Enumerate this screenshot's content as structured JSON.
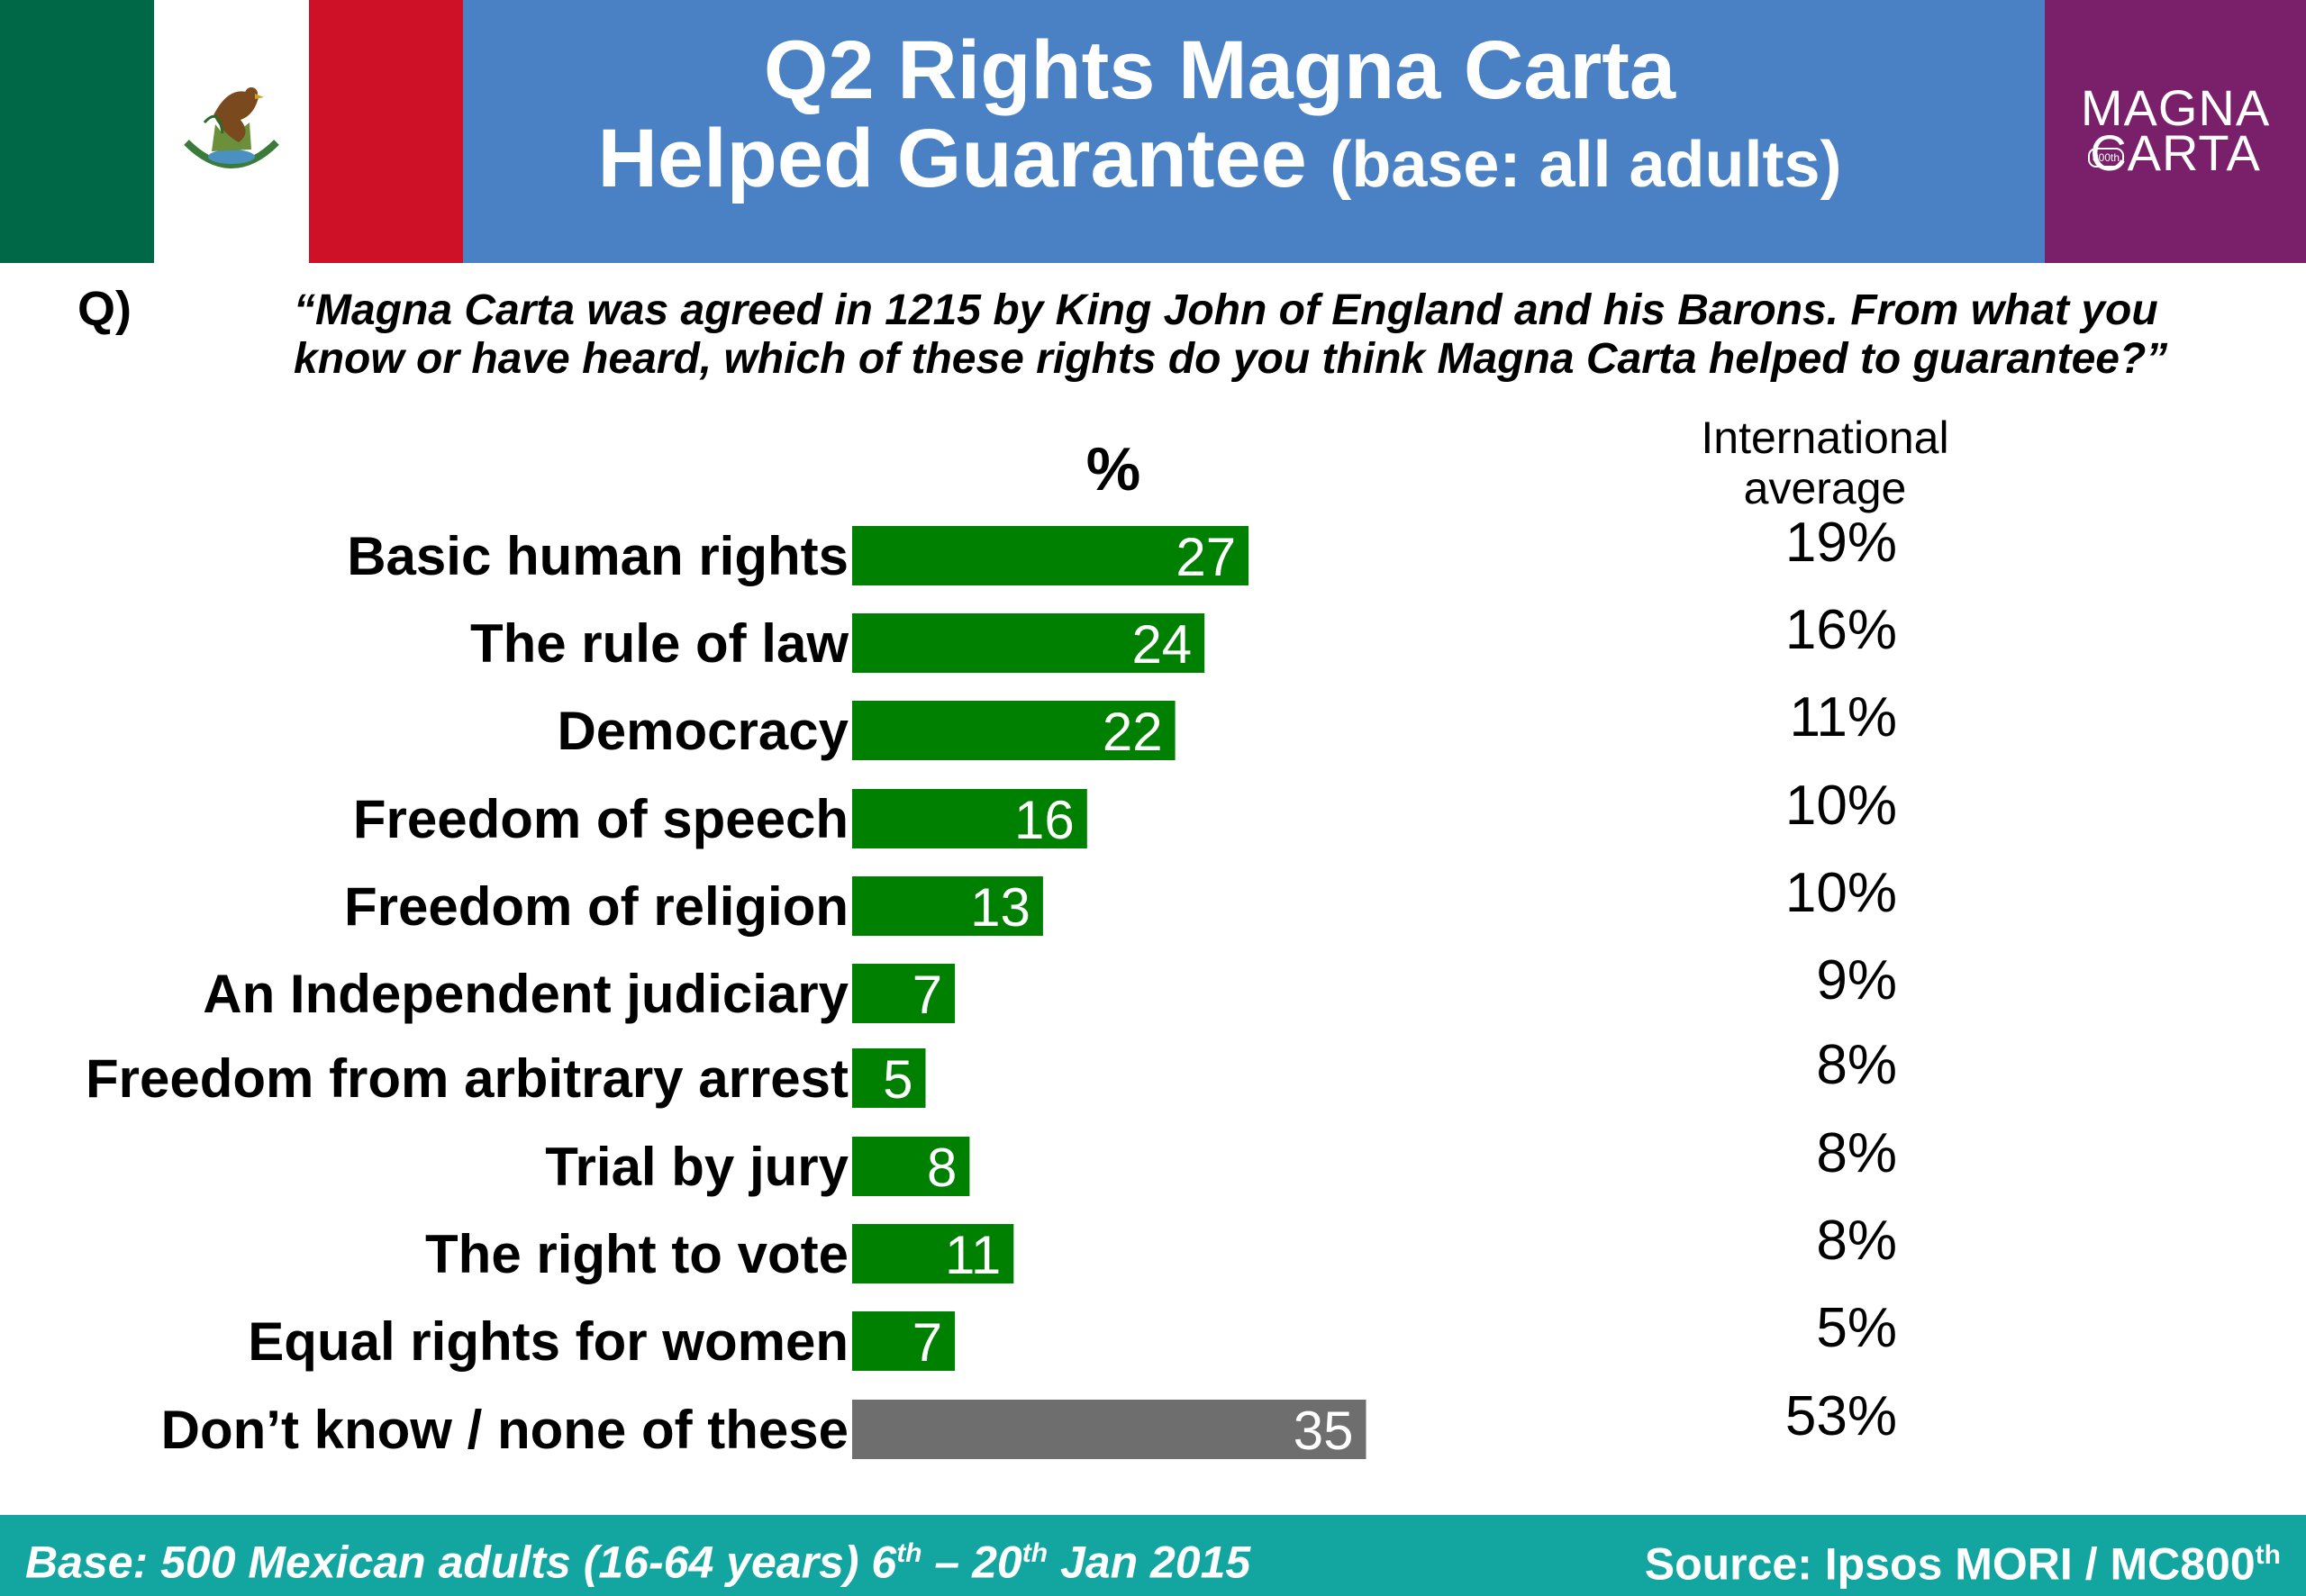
{
  "header": {
    "title_line1": "Q2 Rights Magna Carta",
    "title_line2_main": "Helped Guarantee",
    "title_line2_small": "(base: all adults)",
    "logo_line1": "MAGNA",
    "logo_line2": "CARTA",
    "logo_badge": "800th"
  },
  "question": {
    "label": "Q)",
    "text": "“Magna Carta was agreed in 1215 by King John of England and his Barons. From what you know or have heard, which of these rights do you think Magna Carta helped to guarantee?”"
  },
  "columns": {
    "pct_header": "%",
    "intl_header_line1": "International",
    "intl_header_line2": "average"
  },
  "chart_data": {
    "type": "bar",
    "orientation": "horizontal",
    "categories": [
      "Basic human rights",
      "The rule of law",
      "Democracy",
      "Freedom of speech",
      "Freedom of religion",
      "An Independent judiciary",
      "Freedom from arbitrary arrest",
      "Trial by jury",
      "The right to vote",
      "Equal rights for women",
      "Don’t know / none of these"
    ],
    "values": [
      27,
      24,
      22,
      16,
      13,
      7,
      5,
      8,
      11,
      7,
      35
    ],
    "bar_colors": [
      "#008000",
      "#008000",
      "#008000",
      "#008000",
      "#008000",
      "#008000",
      "#008000",
      "#008000",
      "#008000",
      "#008000",
      "#6e6e6e"
    ],
    "international_average": [
      "19%",
      "16%",
      "11%",
      "10%",
      "10%",
      "9%",
      "8%",
      "8%",
      "8%",
      "5%",
      "53%"
    ]
  },
  "footer": {
    "base_pre": "Base: 500 Mexican adults (16-64 years) 6",
    "base_sup1": "th",
    "base_mid": " – 20",
    "base_sup2": "th",
    "base_post": " Jan 2015",
    "source_pre": "Source: Ipsos MORI / MC800",
    "source_sup": "th"
  },
  "colors": {
    "header_bg": "#4a80c4",
    "logo_bg": "#7a1f6a",
    "footer_bg": "#13a6a0",
    "bar_green": "#008000",
    "bar_grey": "#6e6e6e"
  }
}
